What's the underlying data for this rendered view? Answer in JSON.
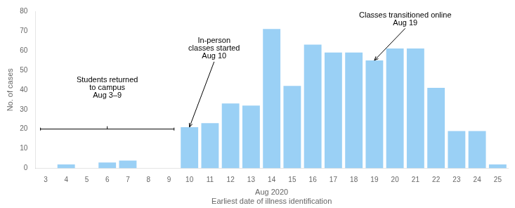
{
  "chart_data": {
    "type": "bar",
    "x": [
      3,
      4,
      5,
      6,
      7,
      8,
      9,
      10,
      11,
      12,
      13,
      14,
      15,
      16,
      17,
      18,
      19,
      20,
      21,
      22,
      23,
      24,
      25
    ],
    "values": [
      0,
      2,
      0,
      3,
      4,
      0,
      0,
      21,
      23,
      33,
      32,
      71,
      42,
      63,
      59,
      59,
      55,
      61,
      61,
      41,
      19,
      19,
      2
    ],
    "xlabel": [
      "Aug 2020",
      "Earliest date of illness identification"
    ],
    "ylabel": "No. of cases",
    "xlim": [
      2.5,
      25.5
    ],
    "xticks": [
      3,
      4,
      5,
      6,
      7,
      8,
      9,
      10,
      11,
      12,
      13,
      14,
      15,
      16,
      17,
      18,
      19,
      20,
      21,
      22,
      23,
      24,
      25
    ],
    "ylim": [
      0,
      80
    ],
    "yticks": [
      0,
      10,
      20,
      30,
      40,
      50,
      60,
      70,
      80
    ],
    "grid": false,
    "annotations": [
      {
        "text": "Students returned\nto campus\nAug 3–9",
        "x": 6.0,
        "y": 35,
        "bracket": [
          2.75,
          9.25
        ],
        "bracket_y": 20
      },
      {
        "text": "In-person\nclasses started\nAug 10",
        "x": 11.2,
        "y": 55,
        "arrow_x": 10.0,
        "arrow_y": 21
      },
      {
        "text": "Classes transitioned online\nAug 19",
        "x": 20.5,
        "y": 72,
        "arrow_x": 19.0,
        "arrow_y": 55
      }
    ]
  }
}
